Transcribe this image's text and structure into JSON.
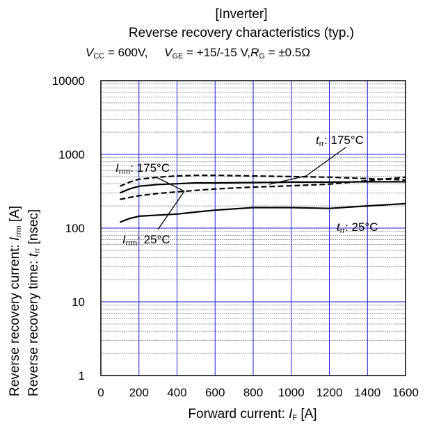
{
  "chart_data": {
    "type": "line",
    "title": "[Inverter]",
    "subtitle": "Reverse recovery characteristics  (typ.)",
    "conditions": {
      "vcc_sym": "V",
      "vcc_sub": "CC",
      "vcc_val": "= 600V,",
      "vge_sym": "V",
      "vge_sub": "GE",
      "vge_val": "= +15/-15 V,",
      "rg_sym": "R",
      "rg_sub": "G",
      "rg_val": "= ±0.5Ω"
    },
    "xlabel": {
      "text": "Forward current: ",
      "sym": "I",
      "sub": "F",
      "unit": " [A]"
    },
    "ylabel_1": {
      "text": "Reverse recovery current: ",
      "sym": "I",
      "sub": "rrm",
      "unit": "  [A]"
    },
    "ylabel_2": {
      "text": "Reverse recovery time: ",
      "sym": "t",
      "sub": "rr",
      "unit": " [nsec]"
    },
    "xlim": [
      0,
      1600
    ],
    "ylim": [
      1,
      10000
    ],
    "yscale": "log",
    "grid": true,
    "x_ticks": [
      "0",
      "200",
      "400",
      "600",
      "800",
      "1000",
      "1200",
      "1400",
      "1600"
    ],
    "y_ticks": [
      "1",
      "10",
      "100",
      "1000",
      "10000"
    ],
    "series": [
      {
        "name": "Irrm : 175°C",
        "style": "dashed",
        "x": [
          100,
          150,
          200,
          300,
          400,
          500,
          600,
          800,
          1000,
          1200,
          1400,
          1600
        ],
        "y": [
          370,
          420,
          460,
          490,
          510,
          520,
          520,
          510,
          500,
          490,
          470,
          450
        ]
      },
      {
        "name": "Irrm : 25°C",
        "style": "solid",
        "x": [
          100,
          150,
          200,
          300,
          400,
          500,
          600,
          800,
          1000,
          1200,
          1400,
          1600
        ],
        "y": [
          300,
          340,
          370,
          390,
          400,
          410,
          410,
          415,
          420,
          420,
          425,
          425
        ]
      },
      {
        "name": "trr : 175°C",
        "style": "dashed",
        "x": [
          100,
          150,
          200,
          300,
          400,
          500,
          600,
          800,
          1000,
          1200,
          1400,
          1600
        ],
        "y": [
          245,
          260,
          275,
          295,
          310,
          325,
          340,
          360,
          375,
          395,
          440,
          490
        ]
      },
      {
        "name": "trr : 25°C",
        "style": "solid",
        "x": [
          100,
          150,
          200,
          300,
          400,
          500,
          600,
          800,
          1000,
          1200,
          1400,
          1600
        ],
        "y": [
          120,
          135,
          145,
          150,
          155,
          165,
          175,
          190,
          190,
          185,
          200,
          215
        ]
      }
    ],
    "annotations": {
      "irrm175": {
        "sym": "I",
        "sub": "rrm",
        "val": ": 175°C"
      },
      "irrm25": {
        "sym": "I",
        "sub": "rrm",
        "val": ": 25°C"
      },
      "trr175": {
        "sym": "t",
        "sub": "rr",
        "val": ": 175°C"
      },
      "trr25": {
        "sym": "t",
        "sub": "rr",
        "val": ": 25°C"
      }
    }
  }
}
